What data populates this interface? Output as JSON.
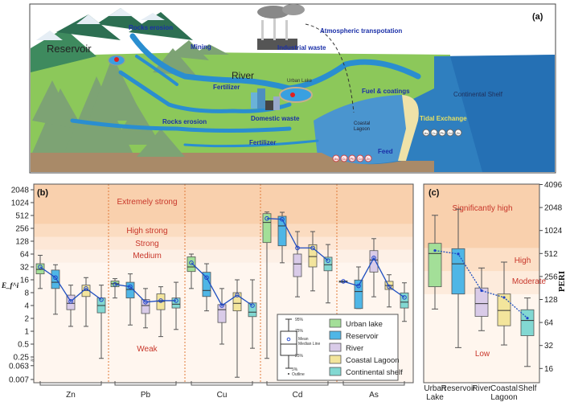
{
  "illustration": {
    "panel_label": "(a)",
    "labels": {
      "reservoir": "Reservoir",
      "rocks_erosion_top": "Rocks erosion",
      "mining": "Mining",
      "atmospheric": "Atmospheric transpotation",
      "industrial": "Industrial waste",
      "river": "River",
      "fertilizer_1": "Fertilizer",
      "urban_lake": "Urban Lake",
      "fuel": "Fuel & coatings",
      "continental_shelf": "Continental Shelf",
      "tidal": "Tidal Exchange",
      "domestic": "Domestic waste",
      "rocks_erosion_bottom": "Rocks erosion",
      "coastal_lagoon_1": "Coastal",
      "coastal_lagoon_2": "Lagoon",
      "fertilizer_2": "Fertilizer",
      "feed": "Feed"
    },
    "metal_badges": [
      "As",
      "Cu",
      "Pb",
      "Cd",
      "Zn"
    ]
  },
  "chart_data": [
    {
      "type": "box",
      "panel_label": "(b)",
      "ylabel": "E_f^i",
      "yscale": "log2 (broken below 0.25)",
      "yticks": [
        "2048",
        "1024",
        "512",
        "256",
        "128",
        "64",
        "32",
        "16",
        "8",
        "4",
        "2",
        "1",
        "0.5",
        "0.25",
        "0.063",
        "0.007"
      ],
      "categories": [
        "Zn",
        "Pb",
        "Cu",
        "Cd",
        "As"
      ],
      "zones": [
        {
          "label": "Extremely strong",
          "min": 320
        },
        {
          "label": "High strong",
          "min": 160
        },
        {
          "label": "Strong",
          "min": 80
        },
        {
          "label": "Medium",
          "min": 40
        },
        {
          "label": "Weak",
          "min": 0
        }
      ],
      "series": [
        {
          "name": "Urban lake",
          "color": "#a3df98"
        },
        {
          "name": "Reservoir",
          "color": "#4fb6e6"
        },
        {
          "name": "River",
          "color": "#d9cbe8"
        },
        {
          "name": "Coastal Lagoon",
          "color": "#f3e59c"
        },
        {
          "name": "Continental shelf",
          "color": "#82d8d2"
        }
      ],
      "boxes": {
        "Zn": [
          {
            "w_lo": 10,
            "q1": 22,
            "med": 28,
            "q3": 38,
            "w_hi": 60,
            "mean": 32
          },
          {
            "w_lo": 2.5,
            "q1": 10,
            "med": 14,
            "q3": 27,
            "w_hi": 36,
            "mean": 18
          },
          {
            "w_lo": 1.3,
            "q1": 3.2,
            "med": 4.5,
            "q3": 7,
            "w_hi": 12,
            "mean": 5
          },
          {
            "w_lo": 1.3,
            "q1": 6.5,
            "med": 9,
            "q3": 12,
            "w_hi": 18,
            "mean": 10
          },
          {
            "w_lo": 0.2,
            "q1": 2.7,
            "med": 4,
            "q3": 6,
            "w_hi": 12,
            "mean": 5.5
          }
        ],
        "Pb": [
          {
            "w_lo": 6,
            "q1": 11,
            "med": 13,
            "q3": 15,
            "w_hi": 17,
            "mean": 12.5
          },
          {
            "w_lo": 1.4,
            "q1": 6,
            "med": 9.5,
            "q3": 14,
            "w_hi": 22,
            "mean": 11
          },
          {
            "w_lo": 1.2,
            "q1": 2.6,
            "med": 4,
            "q3": 5.5,
            "w_hi": 10,
            "mean": 4.8
          },
          {
            "w_lo": 0.75,
            "q1": 3.2,
            "med": 5,
            "q3": 7.5,
            "w_hi": 11,
            "mean": 5.2
          },
          {
            "w_lo": 1.1,
            "q1": 3.5,
            "med": 4.3,
            "q3": 6,
            "w_hi": 14,
            "mean": 5.2
          }
        ],
        "Cu": [
          {
            "w_lo": 10,
            "q1": 25,
            "med": 32,
            "q3": 55,
            "w_hi": 64,
            "mean": 40
          },
          {
            "w_lo": 3,
            "q1": 6.5,
            "med": 9,
            "q3": 24,
            "w_hi": 38,
            "mean": 18
          },
          {
            "w_lo": 0.5,
            "q1": 1.6,
            "med": 3.2,
            "q3": 4.2,
            "w_hi": 10,
            "mean": 4
          },
          {
            "w_lo": 0.01,
            "q1": 3,
            "med": 4.5,
            "q3": 8,
            "w_hi": 16,
            "mean": 7
          },
          {
            "w_lo": 0.4,
            "q1": 2.2,
            "med": 2.8,
            "q3": 4.6,
            "w_hi": 16,
            "mean": 4
          }
        ],
        "Cd": [
          {
            "w_lo": 0.2,
            "q1": 119,
            "med": 352,
            "q3": 565,
            "w_hi": 617,
            "mean": 436
          },
          {
            "w_lo": 40,
            "q1": 100,
            "med": 292,
            "q3": 490,
            "w_hi": 608,
            "mean": 417
          },
          {
            "w_lo": 6.4,
            "q1": 19,
            "med": 37.6,
            "q3": 64,
            "w_hi": 215,
            "mean": 89
          },
          {
            "w_lo": 8.8,
            "q1": 32,
            "med": 56,
            "q3": 106,
            "w_hi": 215,
            "mean": 89
          },
          {
            "w_lo": 4.6,
            "q1": 26,
            "med": 36,
            "q3": 54,
            "w_hi": 107,
            "mean": 45
          }
        ],
        "As": [
          {
            "w_lo": 14,
            "q1": 14,
            "med": 14.7,
            "q3": 15,
            "w_hi": 15,
            "mean": 14.7
          },
          {
            "w_lo": 3.4,
            "q1": 3.4,
            "med": 8.5,
            "q3": 15.8,
            "w_hi": 32,
            "mean": 11.5
          },
          {
            "w_lo": 6.4,
            "q1": 24.3,
            "med": 46.6,
            "q3": 77,
            "w_hi": 147,
            "mean": 52
          },
          {
            "w_lo": 3.7,
            "q1": 9.5,
            "med": 11.8,
            "q3": 14.7,
            "w_hi": 21,
            "mean": 11
          },
          {
            "w_lo": 1.7,
            "q1": 3.5,
            "med": 4.8,
            "q3": 7.9,
            "w_hi": 13.6,
            "mean": 6.2
          }
        ]
      },
      "legend": {
        "position": "bottom-right",
        "key_labels": [
          "95%",
          "75%",
          "Mean",
          "Median Line",
          "25%",
          "5%",
          "Outline"
        ]
      }
    },
    {
      "type": "box",
      "panel_label": "(c)",
      "ylabel": "PERI",
      "yscale": "log2",
      "yticks": [
        "4096",
        "2048",
        "1024",
        "512",
        "256",
        "128",
        "64",
        "32",
        "16"
      ],
      "categories": [
        [
          "Urban",
          "Lake"
        ],
        [
          "Reservoir",
          ""
        ],
        [
          "River",
          ""
        ],
        [
          "Coastal",
          "Lagoon"
        ],
        [
          "Shelf",
          ""
        ]
      ],
      "zones": [
        {
          "label": "Significantly high",
          "min": 600
        },
        {
          "label": "High",
          "min": 300
        },
        {
          "label": "Moderate",
          "min": 150
        },
        {
          "label": "Low",
          "min": 0
        }
      ],
      "boxes": [
        {
          "w_lo": 96,
          "q1": 188,
          "med": 512,
          "q3": 695,
          "w_hi": 1620,
          "mean": 560
        },
        {
          "w_lo": 30,
          "q1": 151,
          "med": 375,
          "q3": 592,
          "w_hi": 1950,
          "mean": 505
        },
        {
          "w_lo": 50,
          "q1": 77,
          "med": 113,
          "q3": 181,
          "w_hi": 331,
          "mean": 167
        },
        {
          "w_lo": 32.5,
          "q1": 58,
          "med": 92,
          "q3": 151,
          "w_hi": 395,
          "mean": 136
        },
        {
          "w_lo": 17,
          "q1": 43,
          "med": 68,
          "q3": 94,
          "w_hi": 134,
          "mean": 73
        }
      ]
    }
  ]
}
